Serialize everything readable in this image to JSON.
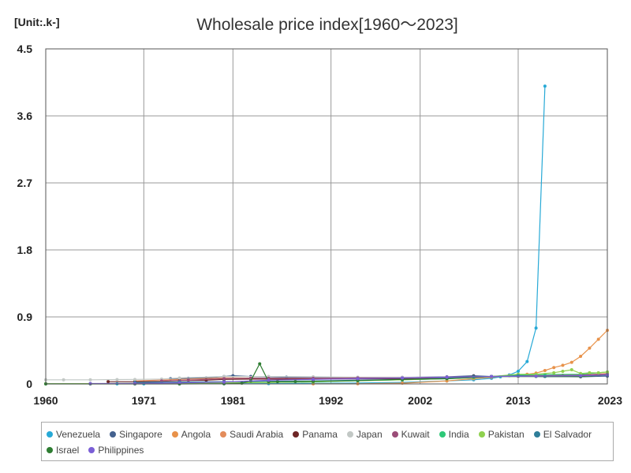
{
  "unit_label": "[Unit:.k-]",
  "chart_data": {
    "type": "line",
    "title": "Wholesale price index[1960～2023]",
    "xlabel": "",
    "ylabel": "",
    "xlim": [
      1960,
      2023
    ],
    "ylim": [
      0,
      4.5
    ],
    "xticks": [
      1960,
      1971,
      1981,
      1992,
      2002,
      2013,
      2023
    ],
    "yticks": [
      0,
      0.9,
      1.8,
      2.7,
      3.6,
      4.5
    ],
    "ytick_labels": [
      "0",
      "0.9",
      "1.8",
      "2.7",
      "3.6",
      "4.5"
    ],
    "grid": true,
    "legend_position": "bottom",
    "series": [
      {
        "name": "Venezuela",
        "color": "#27a9d6",
        "x": [
          1968,
          1971,
          1975,
          1980,
          1985,
          1990,
          1995,
          2000,
          2005,
          2008,
          2010,
          2011,
          2012,
          2013,
          2014,
          2015,
          2016
        ],
        "y": [
          0.001,
          0.001,
          0.001,
          0.002,
          0.004,
          0.008,
          0.012,
          0.02,
          0.04,
          0.055,
          0.075,
          0.095,
          0.12,
          0.17,
          0.3,
          0.75,
          4.0
        ]
      },
      {
        "name": "Singapore",
        "color": "#44628f",
        "x": [
          1974,
          1976,
          1978,
          1980,
          1981,
          1983,
          1985,
          1987,
          1990,
          1995,
          2000,
          2005,
          2008,
          2010,
          2013,
          2016,
          2020,
          2023
        ],
        "y": [
          0.07,
          0.075,
          0.08,
          0.1,
          0.11,
          0.1,
          0.095,
          0.09,
          0.09,
          0.088,
          0.088,
          0.095,
          0.11,
          0.1,
          0.105,
          0.1,
          0.095,
          0.105
        ]
      },
      {
        "name": "Angola",
        "color": "#e8924a",
        "x": [
          1990,
          1995,
          2000,
          2005,
          2008,
          2010,
          2012,
          2014,
          2015,
          2016,
          2017,
          2018,
          2019,
          2020,
          2021,
          2022,
          2023
        ],
        "y": [
          0.001,
          0.002,
          0.01,
          0.04,
          0.07,
          0.09,
          0.11,
          0.13,
          0.145,
          0.18,
          0.22,
          0.25,
          0.29,
          0.37,
          0.48,
          0.6,
          0.72
        ]
      },
      {
        "name": "Saudi Arabia",
        "color": "#e38c5b",
        "x": [
          1970,
          1975,
          1980,
          1985,
          1990,
          1995,
          2000,
          2005,
          2010,
          2013,
          2015,
          2018,
          2020,
          2023
        ],
        "y": [
          0.04,
          0.06,
          0.08,
          0.075,
          0.075,
          0.08,
          0.08,
          0.09,
          0.1,
          0.11,
          0.11,
          0.115,
          0.12,
          0.14
        ]
      },
      {
        "name": "Panama",
        "color": "#6e2626",
        "x": [
          1967,
          1970,
          1973,
          1975,
          1978,
          1980,
          1983,
          1985,
          1990,
          1995,
          2000,
          2005,
          2008,
          2010,
          2013,
          2016,
          2020,
          2023
        ],
        "y": [
          0.03,
          0.03,
          0.035,
          0.045,
          0.05,
          0.06,
          0.065,
          0.065,
          0.065,
          0.068,
          0.07,
          0.08,
          0.1,
          0.1,
          0.11,
          0.1,
          0.11,
          0.12
        ]
      },
      {
        "name": "Japan",
        "color": "#c2c8c5",
        "x": [
          1960,
          1962,
          1965,
          1968,
          1970,
          1973,
          1975,
          1980,
          1985,
          1990,
          1995,
          2000,
          2005,
          2010,
          2013,
          2016,
          2020,
          2023
        ],
        "y": [
          0.055,
          0.055,
          0.055,
          0.058,
          0.06,
          0.065,
          0.08,
          0.1,
          0.1,
          0.095,
          0.09,
          0.09,
          0.09,
          0.1,
          0.1,
          0.1,
          0.1,
          0.12
        ]
      },
      {
        "name": "Kuwait",
        "color": "#9b4d78",
        "x": [
          1973,
          1976,
          1980,
          1983,
          1985,
          1990,
          1995,
          2000,
          2005,
          2008,
          2010,
          2013,
          2015,
          2018,
          2020,
          2023
        ],
        "y": [
          0.04,
          0.05,
          0.07,
          0.075,
          0.075,
          0.075,
          0.08,
          0.08,
          0.09,
          0.095,
          0.1,
          0.105,
          0.11,
          0.115,
          0.12,
          0.13
        ]
      },
      {
        "name": "India",
        "color": "#2ec878",
        "x": [
          1960,
          1965,
          1970,
          1975,
          1980,
          1985,
          1990,
          1995,
          2000,
          2005,
          2008,
          2010,
          2013,
          2016,
          2020,
          2023
        ],
        "y": [
          0.003,
          0.004,
          0.006,
          0.01,
          0.015,
          0.02,
          0.028,
          0.042,
          0.055,
          0.07,
          0.085,
          0.1,
          0.12,
          0.125,
          0.13,
          0.16
        ]
      },
      {
        "name": "Pakistan",
        "color": "#8fd14f",
        "x": [
          1960,
          1965,
          1970,
          1975,
          1980,
          1985,
          1990,
          1995,
          2000,
          2005,
          2008,
          2010,
          2013,
          2015,
          2017,
          2018,
          2019,
          2020,
          2021,
          2022,
          2023
        ],
        "y": [
          0.003,
          0.004,
          0.005,
          0.01,
          0.015,
          0.02,
          0.028,
          0.045,
          0.055,
          0.07,
          0.09,
          0.1,
          0.13,
          0.13,
          0.15,
          0.17,
          0.19,
          0.14,
          0.15,
          0.15,
          0.16
        ]
      },
      {
        "name": "El Salvador",
        "color": "#2f7e99",
        "x": [
          1970,
          1975,
          1980,
          1985,
          1990,
          1995,
          2000,
          2005,
          2008,
          2010,
          2013,
          2016,
          2020,
          2023
        ],
        "y": [
          0.02,
          0.025,
          0.03,
          0.035,
          0.04,
          0.05,
          0.06,
          0.075,
          0.095,
          0.1,
          0.11,
          0.1,
          0.105,
          0.115
        ]
      },
      {
        "name": "Israel",
        "color": "#2e7d32",
        "x": [
          1960,
          1965,
          1970,
          1975,
          1980,
          1982,
          1983,
          1984,
          1985,
          1986,
          1988,
          1990,
          1995,
          2000,
          2005,
          2010,
          2015,
          2020,
          2023
        ],
        "y": [
          0.0,
          0.0,
          0.0,
          0.0,
          0.002,
          0.01,
          0.04,
          0.27,
          0.03,
          0.03,
          0.032,
          0.035,
          0.045,
          0.06,
          0.07,
          0.1,
          0.1,
          0.1,
          0.12
        ]
      },
      {
        "name": "Philippines",
        "color": "#7b5fd6",
        "x": [
          1965,
          1970,
          1975,
          1980,
          1985,
          1990,
          1995,
          2000,
          2005,
          2010,
          2015,
          2020,
          2023
        ],
        "y": [
          0.005,
          0.007,
          0.015,
          0.025,
          0.05,
          0.06,
          0.07,
          0.08,
          0.09,
          0.1,
          0.105,
          0.11,
          0.12
        ]
      }
    ]
  }
}
